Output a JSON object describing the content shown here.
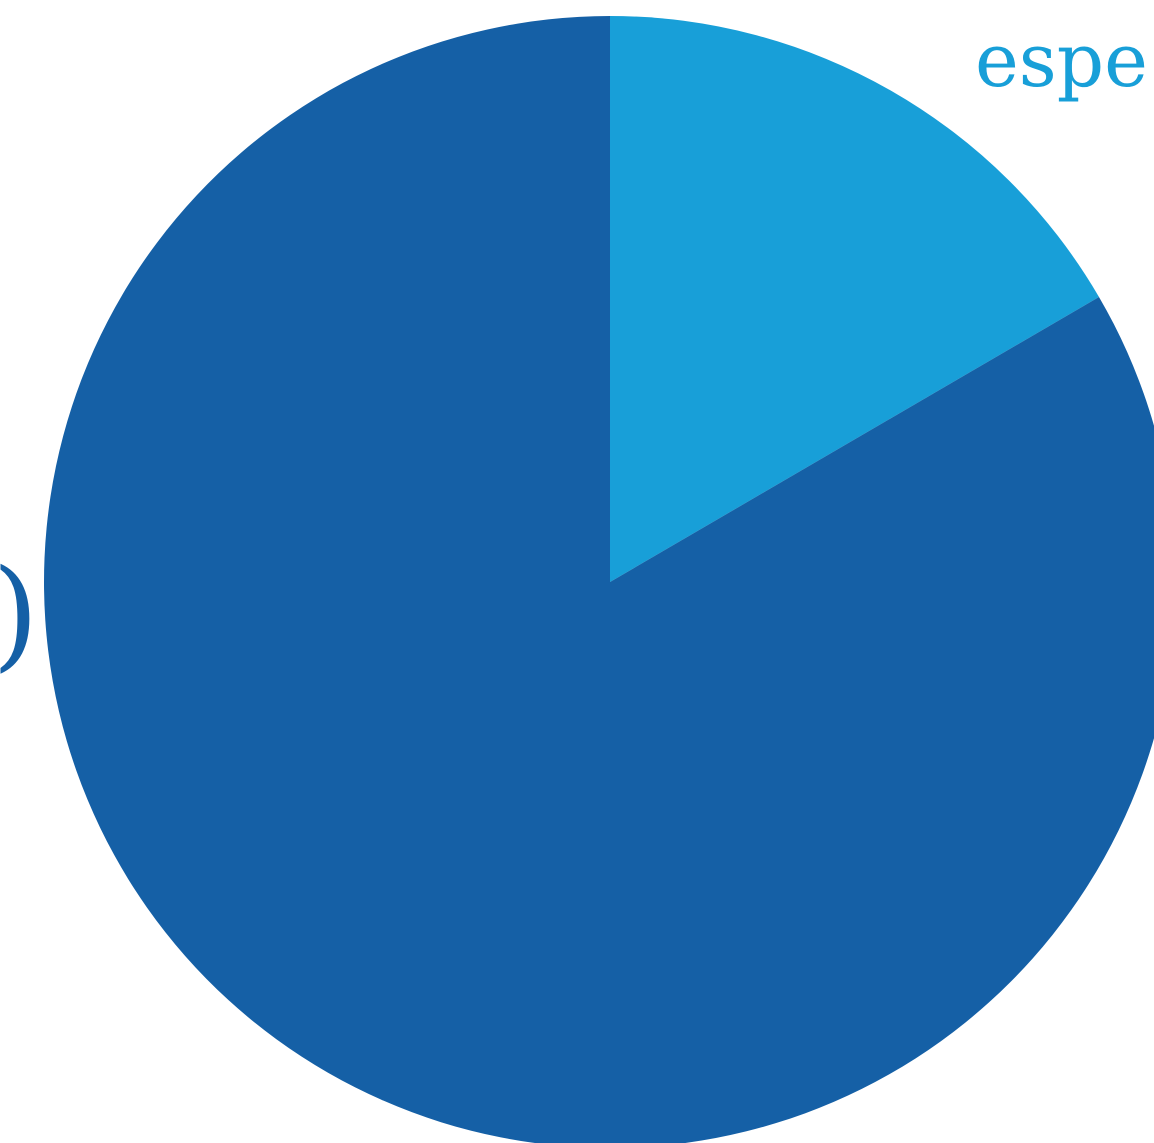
{
  "chart_data": {
    "type": "pie",
    "slices": [
      {
        "label": "espe",
        "value": 16.6,
        "color": "#189fd8"
      },
      {
        "label": ")",
        "value": 83.4,
        "color": "#1560a6"
      }
    ]
  }
}
